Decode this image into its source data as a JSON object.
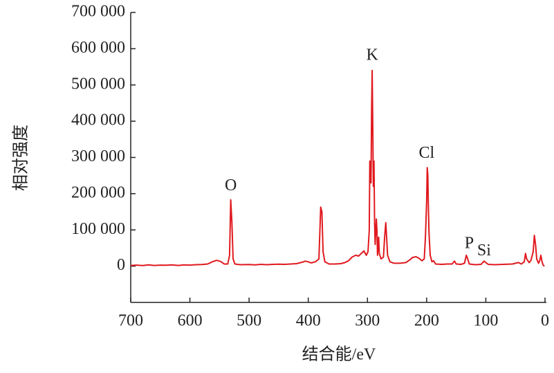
{
  "chart_data": {
    "type": "line",
    "xlabel": "结合能/eV",
    "ylabel": "相对强度",
    "xlim": [
      700,
      0
    ],
    "ylim": [
      -100000,
      700000
    ],
    "xticks": [
      700,
      600,
      500,
      400,
      300,
      200,
      100,
      0
    ],
    "yticks": [
      0,
      {
        "value": 100000,
        "label": "100 000"
      },
      {
        "value": 200000,
        "label": "200 000"
      },
      {
        "value": 300000,
        "label": "300 000"
      },
      {
        "value": 400000,
        "label": "400 000"
      },
      {
        "value": 500000,
        "label": "500 000"
      },
      {
        "value": 600000,
        "label": "600 000"
      },
      {
        "value": 700000,
        "label": "700 000"
      }
    ],
    "color": "#e0191e",
    "annotations": [
      {
        "text": "O",
        "x": 531,
        "y": 220000
      },
      {
        "text": "K",
        "x": 292,
        "y": 580000
      },
      {
        "text": "Cl",
        "x": 200,
        "y": 310000
      },
      {
        "text": "P",
        "x": 128,
        "y": 60000
      },
      {
        "text": "Si",
        "x": 103,
        "y": 40000
      }
    ],
    "x": [
      700,
      690,
      680,
      670,
      660,
      650,
      640,
      630,
      620,
      610,
      600,
      590,
      580,
      570,
      562,
      555,
      548,
      542,
      536,
      533,
      531,
      529,
      527,
      524,
      515,
      500,
      490,
      480,
      470,
      460,
      450,
      440,
      430,
      420,
      410,
      405,
      400,
      395,
      388,
      382,
      379,
      377,
      375,
      372,
      365,
      355,
      345,
      338,
      332,
      326,
      320,
      315,
      310,
      306,
      302,
      299,
      297,
      296,
      294,
      293,
      292,
      291,
      290,
      289,
      288,
      287,
      285,
      284,
      283,
      281,
      280,
      277,
      273,
      271,
      269,
      268,
      266,
      262,
      255,
      245,
      235,
      228,
      224,
      218,
      213,
      208,
      204,
      202,
      200,
      199,
      198,
      197,
      196,
      194,
      191,
      188,
      185,
      175,
      165,
      157,
      153,
      150,
      142,
      136,
      133,
      131,
      128,
      118,
      108,
      103,
      100,
      96,
      85,
      70,
      55,
      45,
      40,
      35,
      33,
      31,
      27,
      24,
      20,
      18,
      16,
      14,
      11,
      9,
      7,
      5,
      3,
      1
    ],
    "values": [
      2000,
      3000,
      1500,
      3500,
      2000,
      3000,
      2500,
      3500,
      2000,
      3500,
      3000,
      4000,
      4500,
      6000,
      12000,
      16000,
      13000,
      6000,
      6000,
      30000,
      183000,
      120000,
      20000,
      6000,
      4000,
      4500,
      3500,
      5000,
      4000,
      5000,
      5500,
      5000,
      6000,
      7000,
      11000,
      14000,
      12000,
      9000,
      12000,
      20000,
      163000,
      150000,
      40000,
      12000,
      6000,
      6000,
      7000,
      10000,
      15000,
      25000,
      30000,
      28000,
      36000,
      42000,
      30000,
      40000,
      100000,
      290000,
      230000,
      430000,
      540000,
      380000,
      220000,
      290000,
      120000,
      60000,
      130000,
      100000,
      30000,
      80000,
      35000,
      20000,
      25000,
      80000,
      120000,
      90000,
      30000,
      12000,
      8000,
      8000,
      10000,
      18000,
      24000,
      26000,
      22000,
      15000,
      20000,
      80000,
      180000,
      272000,
      250000,
      160000,
      90000,
      30000,
      12000,
      15000,
      6000,
      5000,
      6000,
      6000,
      14000,
      6000,
      5000,
      8000,
      30000,
      22000,
      6000,
      4000,
      5000,
      14000,
      10000,
      5000,
      4000,
      5000,
      6000,
      10000,
      6000,
      12000,
      35000,
      20000,
      10000,
      15000,
      40000,
      85000,
      60000,
      20000,
      8000,
      15000,
      30000,
      12000,
      3000,
      0
    ]
  }
}
